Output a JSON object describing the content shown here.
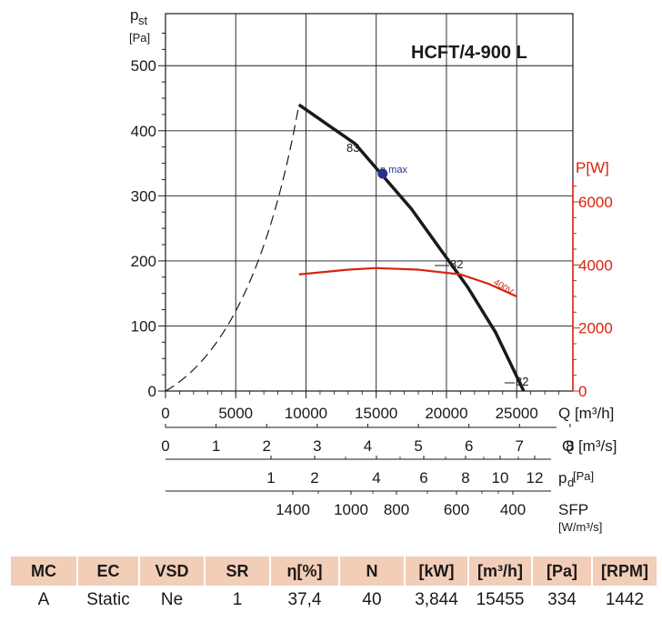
{
  "chart_data": {
    "type": "line",
    "title": "HCFT/4-900 L",
    "ylabel_main": "p",
    "ylabel_sub": "st",
    "ylabel_unit": "[Pa]",
    "ylim": [
      0,
      580
    ],
    "yticks": [
      0,
      100,
      200,
      300,
      400,
      500
    ],
    "ylabel_right": "P[W]",
    "yticks_right": [
      "0",
      "2000",
      "4000",
      "6000"
    ],
    "xlim": [
      0,
      29000
    ],
    "axes": [
      {
        "label": "Q [m³/h]",
        "ticks": [
          "0",
          "5000",
          "10000",
          "15000",
          "20000",
          "25000"
        ]
      },
      {
        "label": "Q [m³/s]",
        "ticks": [
          "0",
          "1",
          "2",
          "3",
          "4",
          "5",
          "6",
          "7",
          "8"
        ]
      },
      {
        "label": "pd[Pa]",
        "ticks": [
          "1",
          "2",
          "4",
          "6",
          "8",
          "10",
          "12"
        ]
      },
      {
        "label": "SFP",
        "unit": "[W/m³/s]",
        "ticks": [
          "1400",
          "1000",
          "800",
          "600",
          "400"
        ]
      }
    ],
    "series": [
      {
        "name": "pressure",
        "x": [
          9500,
          11500,
          13500,
          15500,
          17500,
          19500,
          21500,
          23500,
          25500
        ],
        "y": [
          440,
          410,
          380,
          330,
          280,
          220,
          160,
          90,
          0
        ]
      },
      {
        "name": "power 400V",
        "x": [
          9500,
          13000,
          15000,
          18000,
          21000,
          23000,
          25000
        ],
        "y": [
          3700,
          3850,
          3900,
          3850,
          3700,
          3400,
          3000
        ]
      },
      {
        "name": "system curve",
        "x": [
          0,
          2500,
          5000,
          7500,
          9500
        ],
        "y": [
          0,
          40,
          130,
          280,
          440
        ]
      }
    ],
    "annotations": [
      "83",
      "η max",
      "82",
      "82",
      "400V"
    ],
    "eta_max_point": {
      "x": 15455,
      "y": 334
    }
  },
  "table": {
    "headers": [
      "MC",
      "EC",
      "VSD",
      "SR",
      "η[%]",
      "N",
      "[kW]",
      "[m³/h]",
      "[Pa]",
      "[RPM]"
    ],
    "values": [
      "A",
      "Static",
      "Ne",
      "1",
      "37,4",
      "40",
      "3,844",
      "15455",
      "334",
      "1442"
    ]
  }
}
